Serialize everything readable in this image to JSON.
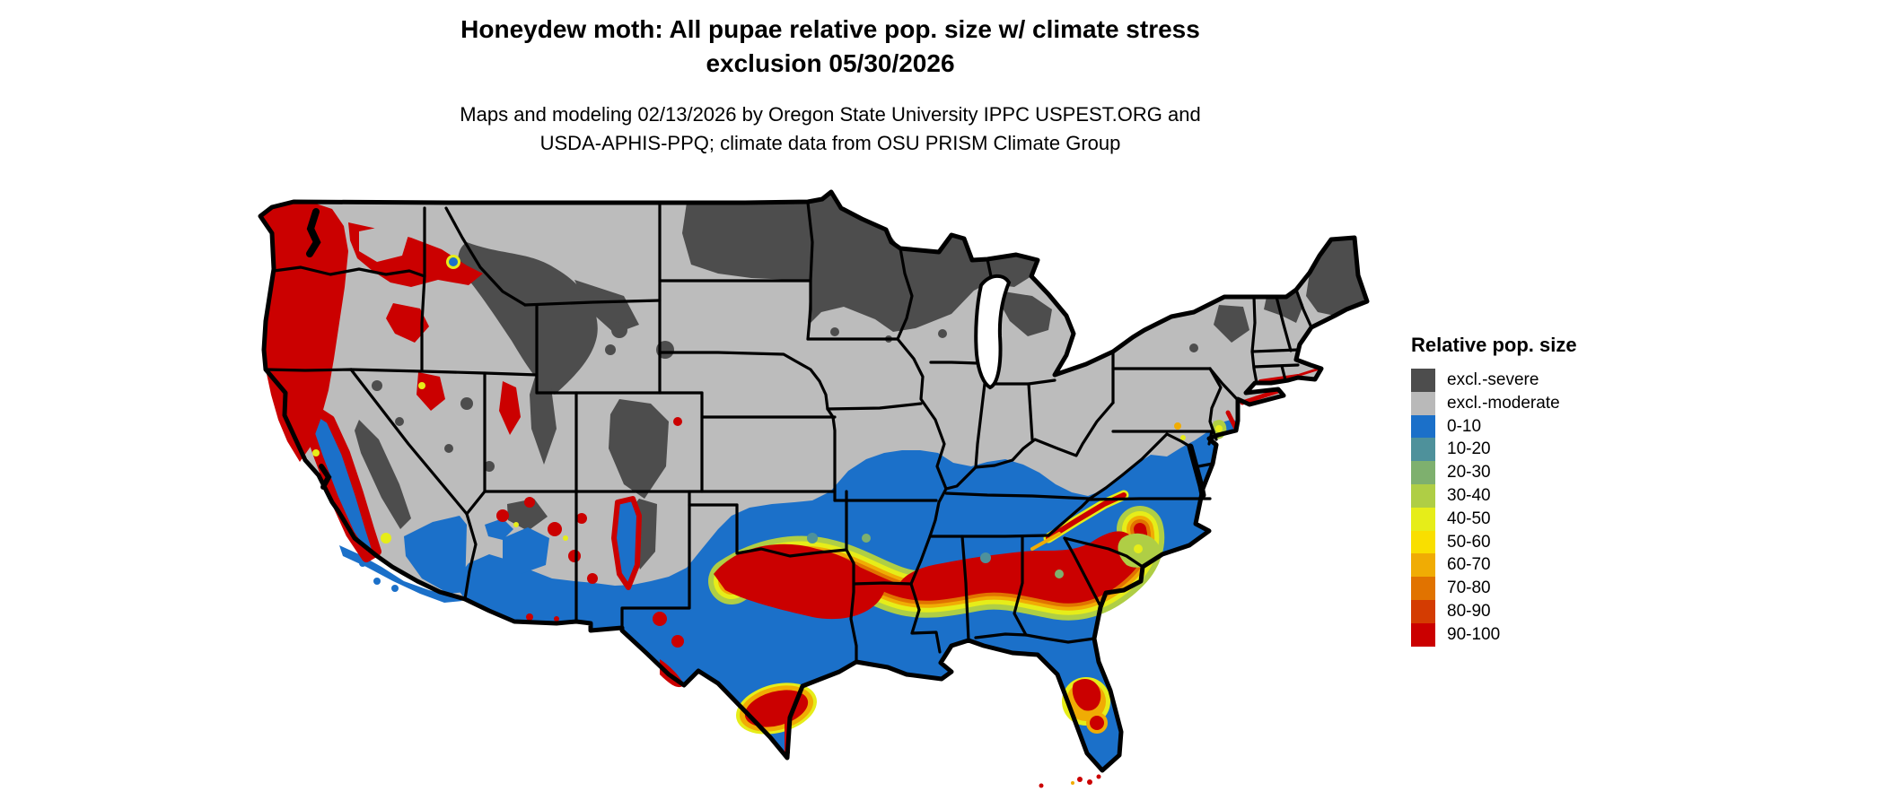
{
  "title": {
    "line1": "Honeydew moth: All pupae relative pop. size w/ climate stress",
    "line2": "exclusion 05/30/2026"
  },
  "subtitle": {
    "line1": "Maps and modeling 02/13/2026 by Oregon State University IPPC USPEST.ORG and",
    "line2": "USDA-APHIS-PPQ; climate data from OSU PRISM Climate Group"
  },
  "legend": {
    "title": "Relative pop. size",
    "items": [
      {
        "label": "excl.-severe",
        "color": "#4D4D4D"
      },
      {
        "label": "excl.-moderate",
        "color": "#B9B9B9"
      },
      {
        "label": "0-10",
        "color": "#1B70C9"
      },
      {
        "label": "10-20",
        "color": "#4E919B"
      },
      {
        "label": "20-30",
        "color": "#7EB06E"
      },
      {
        "label": "30-40",
        "color": "#AFCE45"
      },
      {
        "label": "40-50",
        "color": "#E6ED19"
      },
      {
        "label": "50-60",
        "color": "#F9DF00"
      },
      {
        "label": "60-70",
        "color": "#F0AC04"
      },
      {
        "label": "70-80",
        "color": "#E17300"
      },
      {
        "label": "80-90",
        "color": "#D43C02"
      },
      {
        "label": "90-100",
        "color": "#CB0000"
      }
    ]
  },
  "map": {
    "region": "Continental United States",
    "background_color": "#FFFFFF",
    "state_border_color": "#000000",
    "excluded_moderate_fill": "#BCBCBC",
    "excluded_severe_fill": "#4D4D4D",
    "high_population_fill": "#CB0000",
    "low_population_fill": "#1B70C9"
  }
}
